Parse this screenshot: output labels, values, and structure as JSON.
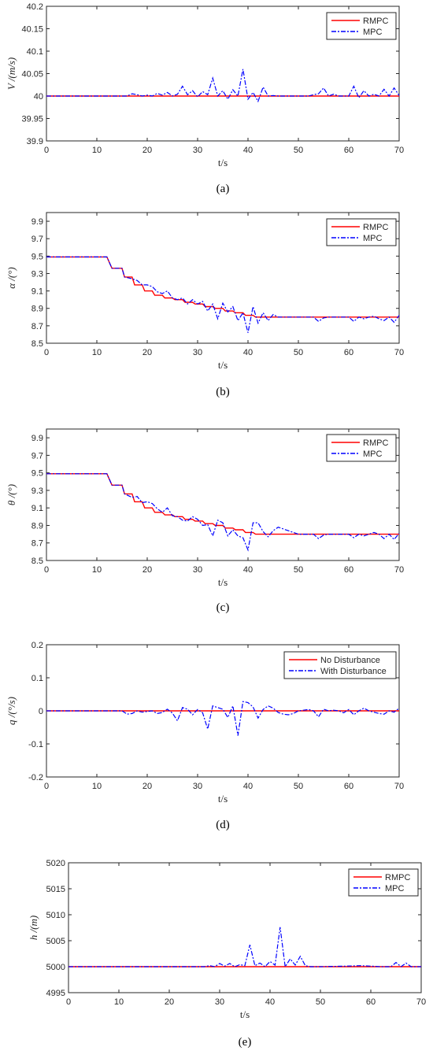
{
  "chart_data": [
    {
      "type": "line",
      "panel_label": "(a)",
      "ylabel": "V /(m/s)",
      "xlabel": "t/s",
      "xlim": [
        0,
        70
      ],
      "ylim": [
        39.9,
        40.2
      ],
      "xticks": [
        "0",
        "10",
        "20",
        "30",
        "40",
        "50",
        "60",
        "70"
      ],
      "yticks": [
        "39.9",
        "39.95",
        "40",
        "40.05",
        "40.1",
        "40.15",
        "40.2"
      ],
      "grid": false,
      "legend": "top-right",
      "x": [
        0,
        16,
        17,
        18,
        19,
        20,
        21,
        22,
        23,
        24,
        25,
        26,
        27,
        28,
        29,
        30,
        31,
        32,
        33,
        34,
        35,
        36,
        37,
        38,
        39,
        40,
        41,
        42,
        43,
        44,
        45,
        46,
        47,
        48,
        49,
        50,
        51,
        52,
        53,
        54,
        55,
        56,
        57,
        58,
        59,
        60,
        61,
        62,
        63,
        64,
        65,
        66,
        67,
        68,
        69,
        70
      ],
      "series": [
        {
          "name": "RMPC",
          "color": "#ff0000",
          "dash": "solid",
          "values": [
            40,
            40,
            40,
            40,
            40,
            40,
            40,
            40,
            40,
            40,
            40,
            40,
            40,
            40,
            40,
            40,
            40,
            40,
            40,
            40,
            40,
            40,
            40,
            40,
            40,
            40,
            40,
            40,
            40,
            40,
            40,
            40,
            40,
            40,
            40,
            40,
            40,
            40,
            40,
            40,
            40,
            40,
            40,
            40,
            40,
            40,
            40,
            40,
            40,
            40,
            40,
            40,
            40,
            40,
            40,
            40
          ]
        },
        {
          "name": "MPC",
          "color": "#0000ff",
          "dash": "dashdot",
          "values": [
            40,
            40,
            40.005,
            40.003,
            40,
            40.002,
            40,
            40.006,
            40.002,
            40.008,
            40,
            40.004,
            40.022,
            40.003,
            40.012,
            39.998,
            40.01,
            40.003,
            40.04,
            40,
            40.012,
            39.993,
            40.014,
            40,
            40.06,
            39.993,
            40.008,
            39.988,
            40.02,
            40,
            40.001,
            40,
            40,
            40,
            40,
            40,
            40,
            40,
            40.003,
            40.005,
            40.018,
            40,
            40.004,
            40,
            40,
            40,
            40.022,
            39.996,
            40.012,
            40,
            40.004,
            40,
            40.015,
            40,
            40.018,
            40.001
          ]
        }
      ]
    },
    {
      "type": "line",
      "panel_label": "(b)",
      "ylabel": "α /(°)",
      "xlabel": "t/s",
      "xlim": [
        0,
        70
      ],
      "ylim": [
        8.5,
        10
      ],
      "xticks": [
        "0",
        "10",
        "20",
        "30",
        "40",
        "50",
        "60",
        "70"
      ],
      "yticks": [
        "8.5",
        "8.7",
        "8.9",
        "9.1",
        "9.3",
        "9.5",
        "9.7",
        "9.9"
      ],
      "grid": false,
      "legend": "top-right",
      "x": [
        0,
        12,
        13,
        15,
        15.5,
        17,
        17.5,
        19,
        19.5,
        21,
        21.5,
        23,
        23.5,
        25,
        25.5,
        27,
        27.5,
        29,
        29.5,
        31,
        31.5,
        33,
        33.5,
        35,
        35.5,
        37,
        37.5,
        39,
        39.5,
        41,
        41.5,
        70
      ],
      "series": [
        {
          "name": "RMPC",
          "color": "#ff0000",
          "dash": "solid",
          "values": [
            9.49,
            9.49,
            9.36,
            9.36,
            9.26,
            9.26,
            9.17,
            9.17,
            9.1,
            9.1,
            9.05,
            9.05,
            9.02,
            9.02,
            9,
            9,
            8.97,
            8.97,
            8.95,
            8.95,
            8.92,
            8.92,
            8.9,
            8.9,
            8.87,
            8.87,
            8.85,
            8.85,
            8.82,
            8.82,
            8.8,
            8.8
          ]
        },
        {
          "name": "MPC",
          "color": "#0000ff",
          "dash": "dashdot",
          "x": [
            0,
            12,
            13,
            15,
            15.5,
            17,
            18,
            19,
            20,
            21,
            22,
            23,
            24,
            25,
            26,
            27,
            28,
            29,
            30,
            31,
            32,
            33,
            34,
            35,
            36,
            37,
            38,
            39,
            40,
            41,
            42,
            43,
            44,
            45,
            46,
            50,
            53,
            54,
            55,
            56,
            60,
            61,
            62,
            63,
            64,
            65,
            66,
            67,
            68,
            69,
            70
          ],
          "values": [
            9.49,
            9.49,
            9.36,
            9.36,
            9.26,
            9.24,
            9.22,
            9.17,
            9.17,
            9.15,
            9.09,
            9.07,
            9.1,
            9.02,
            9,
            9.02,
            8.95,
            9,
            8.95,
            8.98,
            8.87,
            8.95,
            8.78,
            8.96,
            8.86,
            8.92,
            8.76,
            8.85,
            8.62,
            8.92,
            8.73,
            8.85,
            8.76,
            8.83,
            8.8,
            8.8,
            8.8,
            8.75,
            8.79,
            8.8,
            8.8,
            8.75,
            8.8,
            8.78,
            8.8,
            8.81,
            8.78,
            8.76,
            8.8,
            8.74,
            8.82
          ]
        }
      ]
    },
    {
      "type": "line",
      "panel_label": "(c)",
      "ylabel": "θ /(°)",
      "xlabel": "t/s",
      "xlim": [
        0,
        70
      ],
      "ylim": [
        8.5,
        10
      ],
      "xticks": [
        "0",
        "10",
        "20",
        "30",
        "40",
        "50",
        "60",
        "70"
      ],
      "yticks": [
        "8.5",
        "8.7",
        "8.9",
        "9.1",
        "9.3",
        "9.5",
        "9.7",
        "9.9"
      ],
      "grid": false,
      "legend": "top-right",
      "x": [
        0,
        12,
        13,
        15,
        15.5,
        17,
        17.5,
        19,
        19.5,
        21,
        21.5,
        23,
        23.5,
        25,
        25.5,
        27,
        27.5,
        29,
        29.5,
        31,
        31.5,
        33,
        33.5,
        35,
        35.5,
        37,
        37.5,
        39,
        39.5,
        41,
        41.5,
        70
      ],
      "series": [
        {
          "name": "RMPC",
          "color": "#ff0000",
          "dash": "solid",
          "values": [
            9.49,
            9.49,
            9.36,
            9.36,
            9.26,
            9.26,
            9.17,
            9.17,
            9.1,
            9.1,
            9.05,
            9.05,
            9.02,
            9.02,
            9,
            9,
            8.97,
            8.97,
            8.95,
            8.95,
            8.92,
            8.92,
            8.9,
            8.9,
            8.87,
            8.87,
            8.85,
            8.85,
            8.82,
            8.82,
            8.8,
            8.8
          ]
        },
        {
          "name": "MPC",
          "color": "#0000ff",
          "dash": "dashdot",
          "x": [
            0,
            12,
            13,
            15,
            15.5,
            17,
            18,
            19,
            20,
            21,
            22,
            23,
            24,
            25,
            26,
            27,
            28,
            29,
            30,
            31,
            32,
            33,
            34,
            35,
            36,
            37,
            38,
            39,
            40,
            41,
            42,
            43,
            44,
            45,
            46,
            50,
            53,
            54,
            55,
            56,
            60,
            61,
            62,
            63,
            64,
            65,
            66,
            67,
            68,
            69,
            70
          ],
          "values": [
            9.49,
            9.49,
            9.36,
            9.36,
            9.26,
            9.22,
            9.23,
            9.16,
            9.17,
            9.15,
            9.09,
            9.05,
            9.1,
            9.01,
            9,
            8.96,
            8.95,
            9,
            8.97,
            8.9,
            8.91,
            8.78,
            8.96,
            8.93,
            8.78,
            8.85,
            8.78,
            8.76,
            8.62,
            8.93,
            8.93,
            8.83,
            8.77,
            8.84,
            8.88,
            8.8,
            8.8,
            8.75,
            8.79,
            8.8,
            8.8,
            8.76,
            8.8,
            8.78,
            8.8,
            8.82,
            8.8,
            8.75,
            8.8,
            8.74,
            8.81
          ]
        }
      ]
    },
    {
      "type": "line",
      "panel_label": "(d)",
      "ylabel": "q /(°/s)",
      "xlabel": "t/s",
      "xlim": [
        0,
        70
      ],
      "ylim": [
        -0.2,
        0.2
      ],
      "xticks": [
        "0",
        "10",
        "20",
        "30",
        "40",
        "50",
        "60",
        "70"
      ],
      "yticks": [
        "-0.2",
        "-0.1",
        "0",
        "0.1",
        "0.2"
      ],
      "grid": false,
      "legend": "top-right",
      "x": [
        0,
        15,
        16,
        17,
        18,
        19,
        20,
        21,
        22,
        23,
        24,
        25,
        26,
        27,
        28,
        29,
        30,
        31,
        32,
        33,
        34,
        35,
        36,
        37,
        38,
        39,
        40,
        41,
        42,
        43,
        44,
        45,
        46,
        47,
        48,
        49,
        50,
        51,
        52,
        53,
        54,
        55,
        56,
        57,
        58,
        59,
        60,
        61,
        62,
        63,
        64,
        65,
        66,
        67,
        68,
        69,
        70
      ],
      "series": [
        {
          "name": "No Disturbance",
          "color": "#ff0000",
          "dash": "solid",
          "values": [
            0,
            0,
            0,
            0,
            0,
            0,
            0,
            0,
            0,
            0,
            0,
            0,
            0,
            0,
            0,
            0,
            0,
            0,
            0,
            0,
            0,
            0,
            0,
            0,
            0,
            0,
            0,
            0,
            0,
            0,
            0,
            0,
            0,
            0,
            0,
            0,
            0,
            0,
            0,
            0,
            0,
            0,
            0,
            0,
            0,
            0,
            0,
            0,
            0,
            0,
            0,
            0,
            0,
            0,
            0,
            0,
            0
          ]
        },
        {
          "name": "With Disturbance",
          "color": "#0000ff",
          "dash": "dashdot",
          "values": [
            0,
            0,
            -0.01,
            -0.008,
            0,
            -0.004,
            -0.002,
            0,
            -0.008,
            -0.005,
            0.005,
            -0.007,
            -0.03,
            0.01,
            0.005,
            -0.012,
            0.004,
            -0.006,
            -0.055,
            0.015,
            0.01,
            0.005,
            -0.02,
            0.015,
            -0.075,
            0.028,
            0.025,
            0.012,
            -0.022,
            0.004,
            0.015,
            0.008,
            -0.005,
            -0.01,
            -0.012,
            -0.008,
            0,
            0.002,
            0.004,
            0,
            -0.018,
            0.005,
            0,
            0.002,
            0,
            -0.006,
            0.004,
            -0.012,
            0,
            0.008,
            0,
            -0.004,
            -0.008,
            -0.01,
            0,
            -0.004,
            0.008
          ]
        }
      ]
    },
    {
      "type": "line",
      "panel_label": "(e)",
      "ylabel": "h /(m)",
      "xlabel": "t/s",
      "xlim": [
        0,
        70
      ],
      "ylim": [
        4995,
        5020
      ],
      "xticks": [
        "0",
        "10",
        "20",
        "30",
        "40",
        "50",
        "60",
        "70"
      ],
      "yticks": [
        "4995",
        "5000",
        "5005",
        "5010",
        "5015",
        "5020"
      ],
      "grid": false,
      "legend": "top-right",
      "x": [
        0,
        27,
        28,
        29,
        30,
        31,
        32,
        33,
        34,
        35,
        36,
        37,
        38,
        39,
        40,
        41,
        42,
        43,
        44,
        45,
        46,
        47,
        48,
        50,
        55,
        58,
        60,
        62,
        64,
        65,
        66,
        67,
        68,
        70
      ],
      "series": [
        {
          "name": "RMPC",
          "color": "#ff0000",
          "dash": "solid",
          "values": [
            5000,
            5000,
            5000,
            5000,
            5000,
            5000,
            5000,
            5000,
            5000,
            5000,
            5000,
            5000,
            5000,
            5000,
            5000,
            5000,
            5000,
            5000,
            5000,
            5000,
            5000,
            5000,
            5000,
            5000,
            5000,
            5000,
            5000,
            5000,
            5000,
            5000,
            5000,
            5000,
            5000,
            5000
          ]
        },
        {
          "name": "MPC",
          "color": "#0000ff",
          "dash": "dashdot",
          "values": [
            5000,
            5000,
            5000.2,
            5000,
            5000.6,
            5000.1,
            5000.6,
            5000,
            5000.4,
            5000.2,
            5004.2,
            5000.2,
            5000.7,
            5000,
            5001,
            5000.3,
            5007.6,
            5000,
            5001.5,
            5000.3,
            5002,
            5000.2,
            5000,
            5000,
            5000.1,
            5000.2,
            5000.1,
            5000,
            5000,
            5000.8,
            5000,
            5000.7,
            5000,
            5000
          ]
        }
      ]
    }
  ]
}
